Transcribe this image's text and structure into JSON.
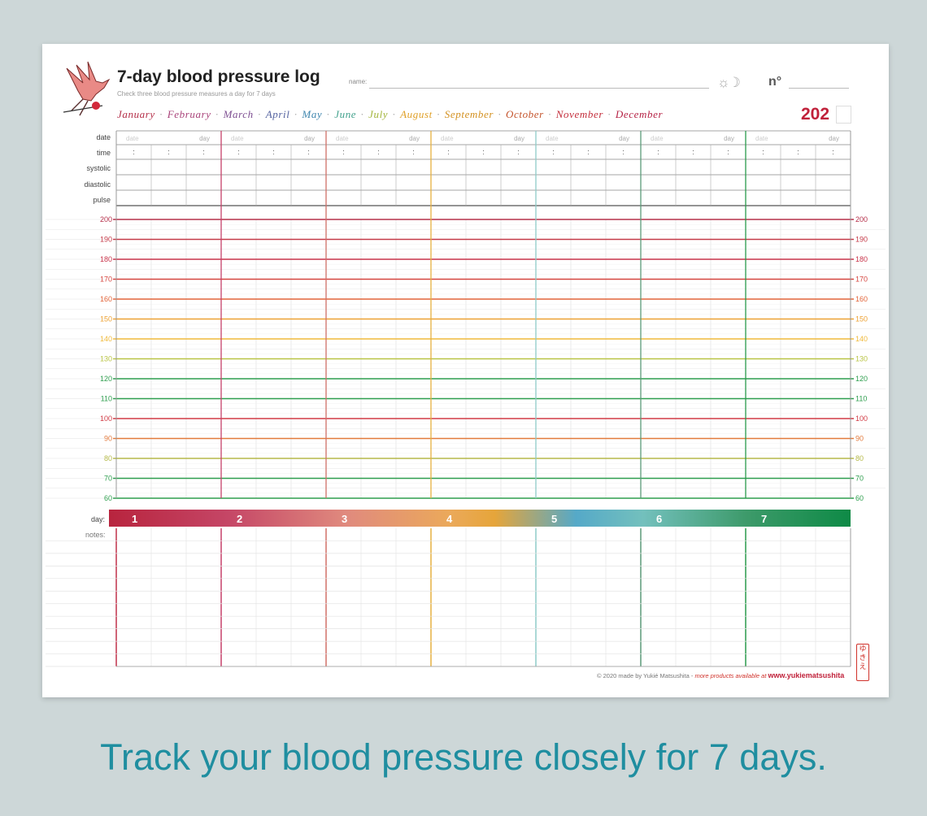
{
  "header": {
    "title": "7-day blood pressure log",
    "subtitle": "Check three blood pressure measures a day for 7 days",
    "name_label": "name:",
    "number_label": "n°",
    "year": "202",
    "sun_moon_icon": "sun-moon-icon"
  },
  "months": [
    {
      "label": "January",
      "color": "#b5304a"
    },
    {
      "label": "February",
      "color": "#a9437a"
    },
    {
      "label": "March",
      "color": "#7e4f92"
    },
    {
      "label": "April",
      "color": "#5563a0"
    },
    {
      "label": "May",
      "color": "#3f86ae"
    },
    {
      "label": "June",
      "color": "#44a28e"
    },
    {
      "label": "July",
      "color": "#a3b53b"
    },
    {
      "label": "August",
      "color": "#e0a12a"
    },
    {
      "label": "September",
      "color": "#d3901f"
    },
    {
      "label": "October",
      "color": "#c4532b"
    },
    {
      "label": "November",
      "color": "#c32d3b"
    },
    {
      "label": "December",
      "color": "#b52144"
    }
  ],
  "row_labels": {
    "date": "date",
    "time": "time",
    "systolic": "systolic",
    "diastolic": "diastolic",
    "pulse": "pulse",
    "day": "day:",
    "notes": "notes:"
  },
  "cells": {
    "date_hint": "date",
    "day_hint": "day",
    "time_sep": ":"
  },
  "scale": [
    200,
    190,
    180,
    170,
    160,
    150,
    140,
    130,
    120,
    110,
    100,
    90,
    80,
    70,
    60
  ],
  "scale_colors": {
    "200": "#b5304a",
    "190": "#c43a48",
    "180": "#c8344a",
    "170": "#d5453f",
    "160": "#e2653a",
    "150": "#eda133",
    "140": "#f0ba3c",
    "130": "#b9c445",
    "120": "#2e9e4e",
    "110": "#2e9e4e",
    "100": "#d13b45",
    "90": "#e27a3c",
    "80": "#b5b94a",
    "70": "#2e9e4e",
    "60": "#2e9e4e"
  },
  "days": [
    {
      "label": "1",
      "color": "#c0304a"
    },
    {
      "label": "2",
      "color": "#c5496a"
    },
    {
      "label": "3",
      "color": "#d0707a"
    },
    {
      "label": "4",
      "color": "#e6a53a"
    },
    {
      "label": "5",
      "color": "#55a9c8"
    },
    {
      "label": "6",
      "color": "#57a08a"
    },
    {
      "label": "7",
      "color": "#0e8a46"
    }
  ],
  "day_divider_colors": [
    "#c0304a",
    "#c5416a",
    "#d07068",
    "#e6b040",
    "#8ecbc8",
    "#5b9a78",
    "#2a9a4c"
  ],
  "footer": {
    "copyright": "© 2020  made by Yukié Matsushita - ",
    "more": "more products available at ",
    "url": "www.yukiematsushita",
    "stamp": "ゆきえ"
  },
  "tagline": "Track your blood pressure closely for 7 days."
}
